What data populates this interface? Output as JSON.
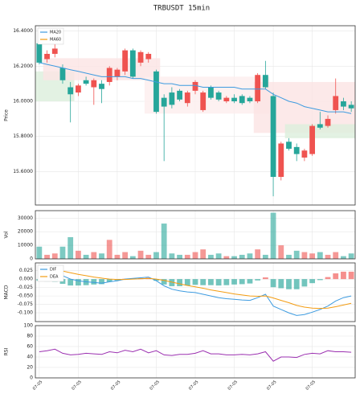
{
  "chart_data": [
    {
      "type": "candlestick",
      "title": "TRBUSDT  15min",
      "ylabel": "Price",
      "categories": [
        "07-05",
        null,
        null,
        null,
        null,
        "07-05",
        null,
        null,
        null,
        null,
        "07-05",
        null,
        null,
        null,
        null,
        "07-05",
        null,
        null,
        null,
        null,
        "07-05",
        null,
        null,
        null,
        null,
        "07-05",
        null,
        null,
        null,
        null,
        "07-05",
        null,
        null,
        null,
        null,
        "07-05",
        null,
        null,
        null,
        null,
        null
      ],
      "open": [
        16.33,
        16.24,
        16.27,
        16.19,
        16.08,
        16.05,
        16.12,
        16.08,
        16.1,
        16.11,
        16.14,
        16.17,
        16.29,
        16.22,
        16.24,
        16.17,
        16.02,
        16.05,
        16.06,
        15.99,
        16.06,
        15.95,
        16.08,
        16.05,
        16.0,
        16.02,
        16.03,
        16.02,
        16.0,
        16.15,
        16.03,
        15.57,
        15.77,
        15.74,
        15.68,
        15.7,
        15.87,
        15.86,
        15.95,
        16.0,
        15.98
      ],
      "high": [
        16.34,
        16.29,
        16.33,
        16.21,
        16.11,
        16.1,
        16.14,
        16.13,
        16.12,
        16.2,
        16.19,
        16.3,
        16.3,
        16.29,
        16.28,
        16.18,
        16.04,
        16.08,
        16.07,
        16.06,
        16.12,
        16.06,
        16.09,
        16.06,
        16.03,
        16.04,
        16.04,
        16.03,
        16.16,
        16.23,
        16.05,
        15.77,
        15.79,
        15.76,
        15.73,
        15.87,
        15.94,
        15.92,
        16.13,
        16.02,
        16.0
      ],
      "low": [
        16.21,
        16.22,
        16.25,
        16.1,
        15.88,
        16.03,
        16.09,
        15.98,
        15.99,
        16.09,
        16.12,
        16.15,
        16.13,
        16.2,
        16.22,
        15.93,
        15.66,
        15.96,
        16.0,
        15.97,
        16.04,
        15.94,
        16.01,
        16.0,
        15.99,
        15.99,
        15.98,
        15.99,
        15.99,
        16.07,
        15.46,
        15.55,
        15.72,
        15.66,
        15.66,
        15.69,
        15.84,
        15.85,
        15.93,
        15.95,
        15.94
      ],
      "close": [
        16.22,
        16.27,
        16.3,
        16.12,
        16.04,
        16.09,
        16.1,
        16.12,
        16.07,
        16.19,
        16.18,
        16.29,
        16.14,
        16.28,
        16.27,
        15.94,
        15.97,
        15.98,
        16.01,
        16.05,
        16.11,
        16.05,
        16.02,
        16.01,
        16.02,
        16.0,
        15.99,
        16.0,
        16.15,
        16.08,
        15.57,
        15.76,
        15.73,
        15.7,
        15.72,
        15.86,
        15.85,
        15.9,
        16.03,
        15.97,
        15.96
      ],
      "up_color": "#ef5350",
      "down_color": "#26a69a",
      "series": [
        {
          "name": "MA20",
          "color": "#3d9be0",
          "values": [
            16.22,
            16.21,
            16.2,
            16.19,
            16.18,
            16.17,
            16.16,
            16.15,
            16.14,
            16.14,
            16.14,
            16.14,
            16.13,
            16.13,
            16.12,
            16.11,
            16.1,
            16.1,
            16.09,
            16.09,
            16.09,
            16.08,
            16.08,
            16.08,
            16.08,
            16.08,
            16.07,
            16.07,
            16.07,
            16.07,
            16.04,
            16.02,
            16.0,
            15.99,
            15.97,
            15.96,
            15.95,
            15.94,
            15.94,
            15.94,
            15.93
          ]
        },
        {
          "name": "MA60",
          "color": "#f39c12",
          "values": [
            null,
            null,
            null,
            null,
            null,
            null,
            null,
            null,
            null,
            null,
            null,
            null,
            null,
            null,
            null,
            null,
            null,
            null,
            null,
            null,
            null,
            null,
            null,
            null,
            null,
            null,
            null,
            null,
            null,
            null,
            null,
            null,
            null,
            null,
            null,
            null,
            null,
            null,
            null,
            null,
            null
          ]
        }
      ],
      "zones": [
        {
          "from": 0,
          "to": 4,
          "low": 16.0,
          "high": 16.17,
          "color": "#dcefdc"
        },
        {
          "from": 1,
          "to": 15,
          "low": 16.12,
          "high": 16.245,
          "color": "#fbe3e3"
        },
        {
          "from": 14,
          "to": 29,
          "low": 15.93,
          "high": 16.14,
          "color": "#fdeeee"
        },
        {
          "from": 28,
          "to": 40,
          "low": 15.82,
          "high": 16.11,
          "color": "#fbe3e3"
        },
        {
          "from": 32,
          "to": 40,
          "low": 15.79,
          "high": 15.87,
          "color": "#dcefdc"
        }
      ],
      "ylim": [
        15.41,
        16.43
      ],
      "yticks": [
        {
          "value": 15.6,
          "label": "15.6000"
        },
        {
          "value": 15.8,
          "label": "15.8000"
        },
        {
          "value": 16.0,
          "label": "16.0000"
        },
        {
          "value": 16.2,
          "label": "16.2000"
        },
        {
          "value": 16.4,
          "label": "16.4000"
        }
      ],
      "grid": true
    },
    {
      "type": "bar",
      "ylabel": "Vol",
      "values": [
        9000,
        3000,
        4000,
        9000,
        16000,
        6000,
        3000,
        5000,
        4000,
        14000,
        3000,
        5000,
        2000,
        6000,
        3000,
        5000,
        26000,
        4000,
        3000,
        3000,
        5000,
        7000,
        3000,
        4000,
        2000,
        2000,
        3000,
        4000,
        7000,
        3000,
        34000,
        10000,
        3000,
        6000,
        5000,
        4000,
        5000,
        3000,
        5000,
        2000,
        4000
      ],
      "ylim": [
        0,
        35500
      ],
      "yticks": [
        0,
        10000,
        20000,
        30000
      ],
      "grid": true
    },
    {
      "type": "macd",
      "ylabel": "MACD",
      "series": [
        {
          "name": "DIF",
          "color": "#3d9be0",
          "values": [
            0.03,
            0.025,
            0.02,
            0.01,
            0.0,
            -0.005,
            -0.008,
            -0.01,
            -0.012,
            -0.008,
            -0.005,
            0.0,
            0.002,
            0.004,
            0.006,
            -0.005,
            -0.02,
            -0.03,
            -0.035,
            -0.038,
            -0.04,
            -0.045,
            -0.05,
            -0.055,
            -0.058,
            -0.06,
            -0.062,
            -0.063,
            -0.055,
            -0.045,
            -0.08,
            -0.09,
            -0.1,
            -0.108,
            -0.105,
            -0.098,
            -0.09,
            -0.08,
            -0.065,
            -0.055,
            -0.05
          ]
        },
        {
          "name": "DEA",
          "color": "#f39c12",
          "values": [
            0.035,
            0.032,
            0.028,
            0.024,
            0.019,
            0.014,
            0.01,
            0.006,
            0.003,
            0.0,
            -0.001,
            -0.001,
            0.0,
            0.001,
            0.002,
            0.0,
            -0.004,
            -0.009,
            -0.014,
            -0.019,
            -0.023,
            -0.027,
            -0.032,
            -0.036,
            -0.04,
            -0.044,
            -0.047,
            -0.05,
            -0.051,
            -0.05,
            -0.056,
            -0.063,
            -0.07,
            -0.078,
            -0.083,
            -0.086,
            -0.087,
            -0.086,
            -0.082,
            -0.077,
            -0.072
          ]
        }
      ],
      "histogram": [
        -0.005,
        -0.007,
        -0.008,
        -0.014,
        -0.019,
        -0.019,
        -0.018,
        -0.016,
        -0.015,
        -0.008,
        -0.004,
        0.001,
        0.002,
        0.003,
        0.004,
        -0.005,
        -0.016,
        -0.021,
        -0.021,
        -0.019,
        -0.017,
        -0.018,
        -0.018,
        -0.019,
        -0.018,
        -0.016,
        -0.015,
        -0.013,
        -0.004,
        0.005,
        -0.024,
        -0.027,
        -0.03,
        -0.03,
        -0.022,
        -0.012,
        -0.003,
        0.006,
        0.017,
        0.022,
        0.022
      ],
      "up_color": "#ef5350",
      "down_color": "#26a69a",
      "ylim": [
        -0.126,
        0.048
      ],
      "yticks": [
        {
          "value": -0.1,
          "label": "-0.100"
        },
        -0.075,
        {
          "value": -0.05,
          "label": "-0.050"
        },
        -0.025,
        {
          "value": 0,
          "label": "0.000"
        },
        0.025
      ],
      "grid": true
    },
    {
      "type": "line",
      "ylabel": "RSI",
      "series": [
        {
          "color": "#9b30b0",
          "values": [
            50,
            52,
            55,
            47,
            44,
            45,
            47,
            46,
            45,
            50,
            48,
            53,
            50,
            55,
            48,
            52,
            44,
            43,
            45,
            45,
            47,
            52,
            46,
            46,
            44,
            44,
            45,
            44,
            46,
            50,
            32,
            40,
            40,
            39,
            45,
            47,
            46,
            52,
            50,
            50,
            49
          ]
        }
      ],
      "ylim": [
        0,
        100
      ],
      "yticks": [
        0,
        20,
        40,
        60,
        80,
        100
      ],
      "grid": true
    }
  ]
}
